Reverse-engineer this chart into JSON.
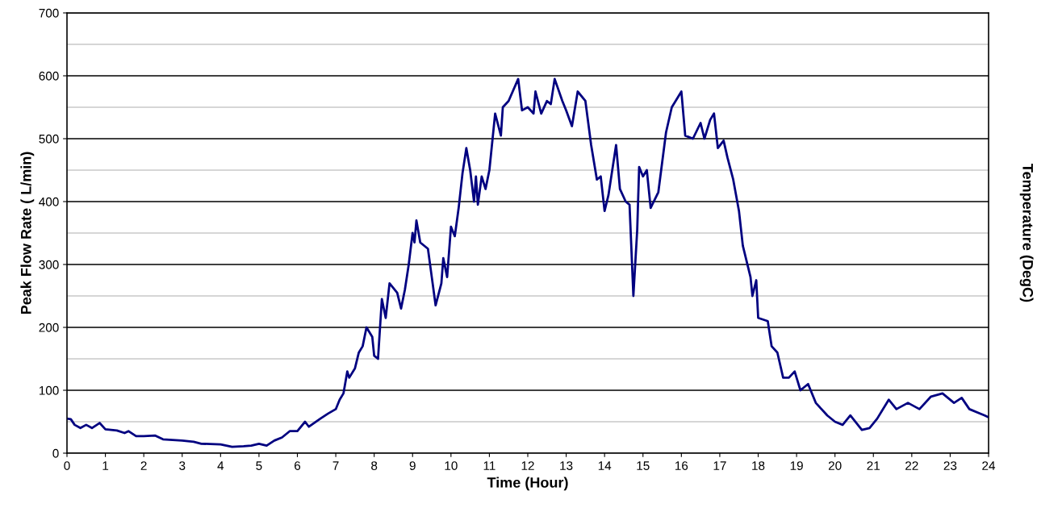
{
  "chart_data": {
    "type": "line",
    "xlabel": "Time (Hour)",
    "ylabel": "Peak Flow Rate ( L/min)",
    "y2label": "Temperature (DegC)",
    "xlim": [
      0,
      24
    ],
    "xticks": [
      0,
      1,
      2,
      3,
      4,
      5,
      6,
      7,
      8,
      9,
      10,
      11,
      12,
      13,
      14,
      15,
      16,
      17,
      18,
      19,
      20,
      21,
      22,
      23,
      24
    ],
    "ylim": [
      0,
      700
    ],
    "yticks": [
      0,
      100,
      200,
      300,
      400,
      500,
      600,
      700
    ],
    "grid": "y",
    "marker": "none",
    "line_style": "solid",
    "series": [
      {
        "color": "#000080",
        "x": [
          0,
          0.1,
          0.2,
          0.35,
          0.5,
          0.65,
          0.85,
          1.0,
          1.3,
          1.5,
          1.6,
          1.8,
          2.0,
          2.3,
          2.5,
          3.0,
          3.3,
          3.5,
          4.0,
          4.3,
          4.6,
          4.8,
          5.0,
          5.2,
          5.4,
          5.6,
          5.8,
          6.0,
          6.2,
          6.3,
          6.6,
          6.8,
          7.0,
          7.1,
          7.2,
          7.3,
          7.35,
          7.5,
          7.6,
          7.7,
          7.8,
          7.95,
          8.0,
          8.1,
          8.2,
          8.3,
          8.4,
          8.6,
          8.7,
          8.8,
          8.9,
          9.0,
          9.05,
          9.1,
          9.2,
          9.4,
          9.5,
          9.6,
          9.75,
          9.8,
          9.9,
          10.0,
          10.1,
          10.2,
          10.3,
          10.4,
          10.5,
          10.6,
          10.65,
          10.7,
          10.8,
          10.9,
          11.0,
          11.15,
          11.3,
          11.35,
          11.5,
          11.75,
          11.85,
          12.0,
          12.15,
          12.2,
          12.35,
          12.5,
          12.6,
          12.7,
          12.9,
          13.0,
          13.15,
          13.3,
          13.5,
          13.65,
          13.8,
          13.9,
          14.0,
          14.1,
          14.3,
          14.4,
          14.55,
          14.65,
          14.75,
          14.85,
          14.9,
          15.0,
          15.1,
          15.2,
          15.4,
          15.6,
          15.75,
          15.85,
          16.0,
          16.1,
          16.3,
          16.5,
          16.6,
          16.75,
          16.85,
          16.95,
          17.1,
          17.2,
          17.35,
          17.5,
          17.6,
          17.8,
          17.85,
          17.95,
          18.0,
          18.25,
          18.35,
          18.5,
          18.65,
          18.8,
          18.95,
          19.1,
          19.3,
          19.5,
          19.8,
          20.0,
          20.2,
          20.4,
          20.7,
          20.9,
          21.1,
          21.4,
          21.6,
          21.9,
          22.2,
          22.5,
          22.8,
          23.1,
          23.3,
          23.5,
          23.9,
          24
        ],
        "values": [
          55,
          54,
          45,
          40,
          45,
          40,
          48,
          38,
          36,
          32,
          35,
          27,
          27,
          28,
          22,
          20,
          18,
          15,
          14,
          10,
          11,
          12,
          15,
          12,
          20,
          25,
          35,
          35,
          50,
          42,
          55,
          63,
          70,
          85,
          95,
          130,
          120,
          135,
          160,
          170,
          200,
          185,
          155,
          150,
          245,
          215,
          270,
          255,
          230,
          260,
          300,
          350,
          335,
          370,
          335,
          325,
          280,
          235,
          270,
          310,
          280,
          360,
          345,
          390,
          445,
          485,
          450,
          400,
          440,
          395,
          440,
          420,
          450,
          540,
          505,
          550,
          560,
          595,
          545,
          550,
          540,
          575,
          540,
          560,
          555,
          595,
          560,
          545,
          520,
          575,
          560,
          490,
          435,
          440,
          385,
          410,
          490,
          420,
          400,
          395,
          250,
          355,
          455,
          440,
          450,
          390,
          415,
          510,
          550,
          560,
          575,
          505,
          500,
          525,
          500,
          530,
          540,
          485,
          497,
          470,
          435,
          385,
          330,
          280,
          250,
          275,
          215,
          210,
          170,
          160,
          120,
          120,
          130,
          100,
          110,
          80,
          60,
          50,
          45,
          60,
          37,
          40,
          55,
          85,
          70,
          80,
          70,
          90,
          95,
          80,
          88,
          70,
          60,
          57
        ]
      }
    ]
  }
}
